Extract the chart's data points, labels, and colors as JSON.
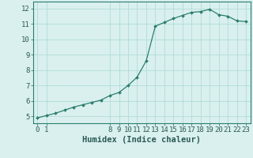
{
  "x": [
    0,
    1,
    2,
    3,
    4,
    5,
    6,
    7,
    8,
    9,
    10,
    11,
    12,
    13,
    14,
    15,
    16,
    17,
    18,
    19,
    20,
    21,
    22,
    23
  ],
  "y": [
    4.9,
    5.05,
    5.2,
    5.4,
    5.6,
    5.75,
    5.9,
    6.05,
    6.35,
    6.55,
    7.0,
    7.55,
    8.6,
    10.85,
    11.1,
    11.35,
    11.55,
    11.75,
    11.8,
    11.95,
    11.6,
    11.5,
    11.2,
    11.15
  ],
  "x_ticks": [
    0,
    1,
    8,
    9,
    10,
    11,
    12,
    13,
    14,
    15,
    16,
    17,
    18,
    19,
    20,
    21,
    22,
    23
  ],
  "y_ticks": [
    5,
    6,
    7,
    8,
    9,
    10,
    11,
    12
  ],
  "xlim": [
    -0.5,
    23.5
  ],
  "ylim": [
    4.55,
    12.45
  ],
  "xlabel": "Humidex (Indice chaleur)",
  "line_color": "#2d7d6e",
  "bg_color": "#d9f0ef",
  "grid_color": "#b0dcd8",
  "tick_label_fontsize": 6.5,
  "xlabel_fontsize": 7.5
}
